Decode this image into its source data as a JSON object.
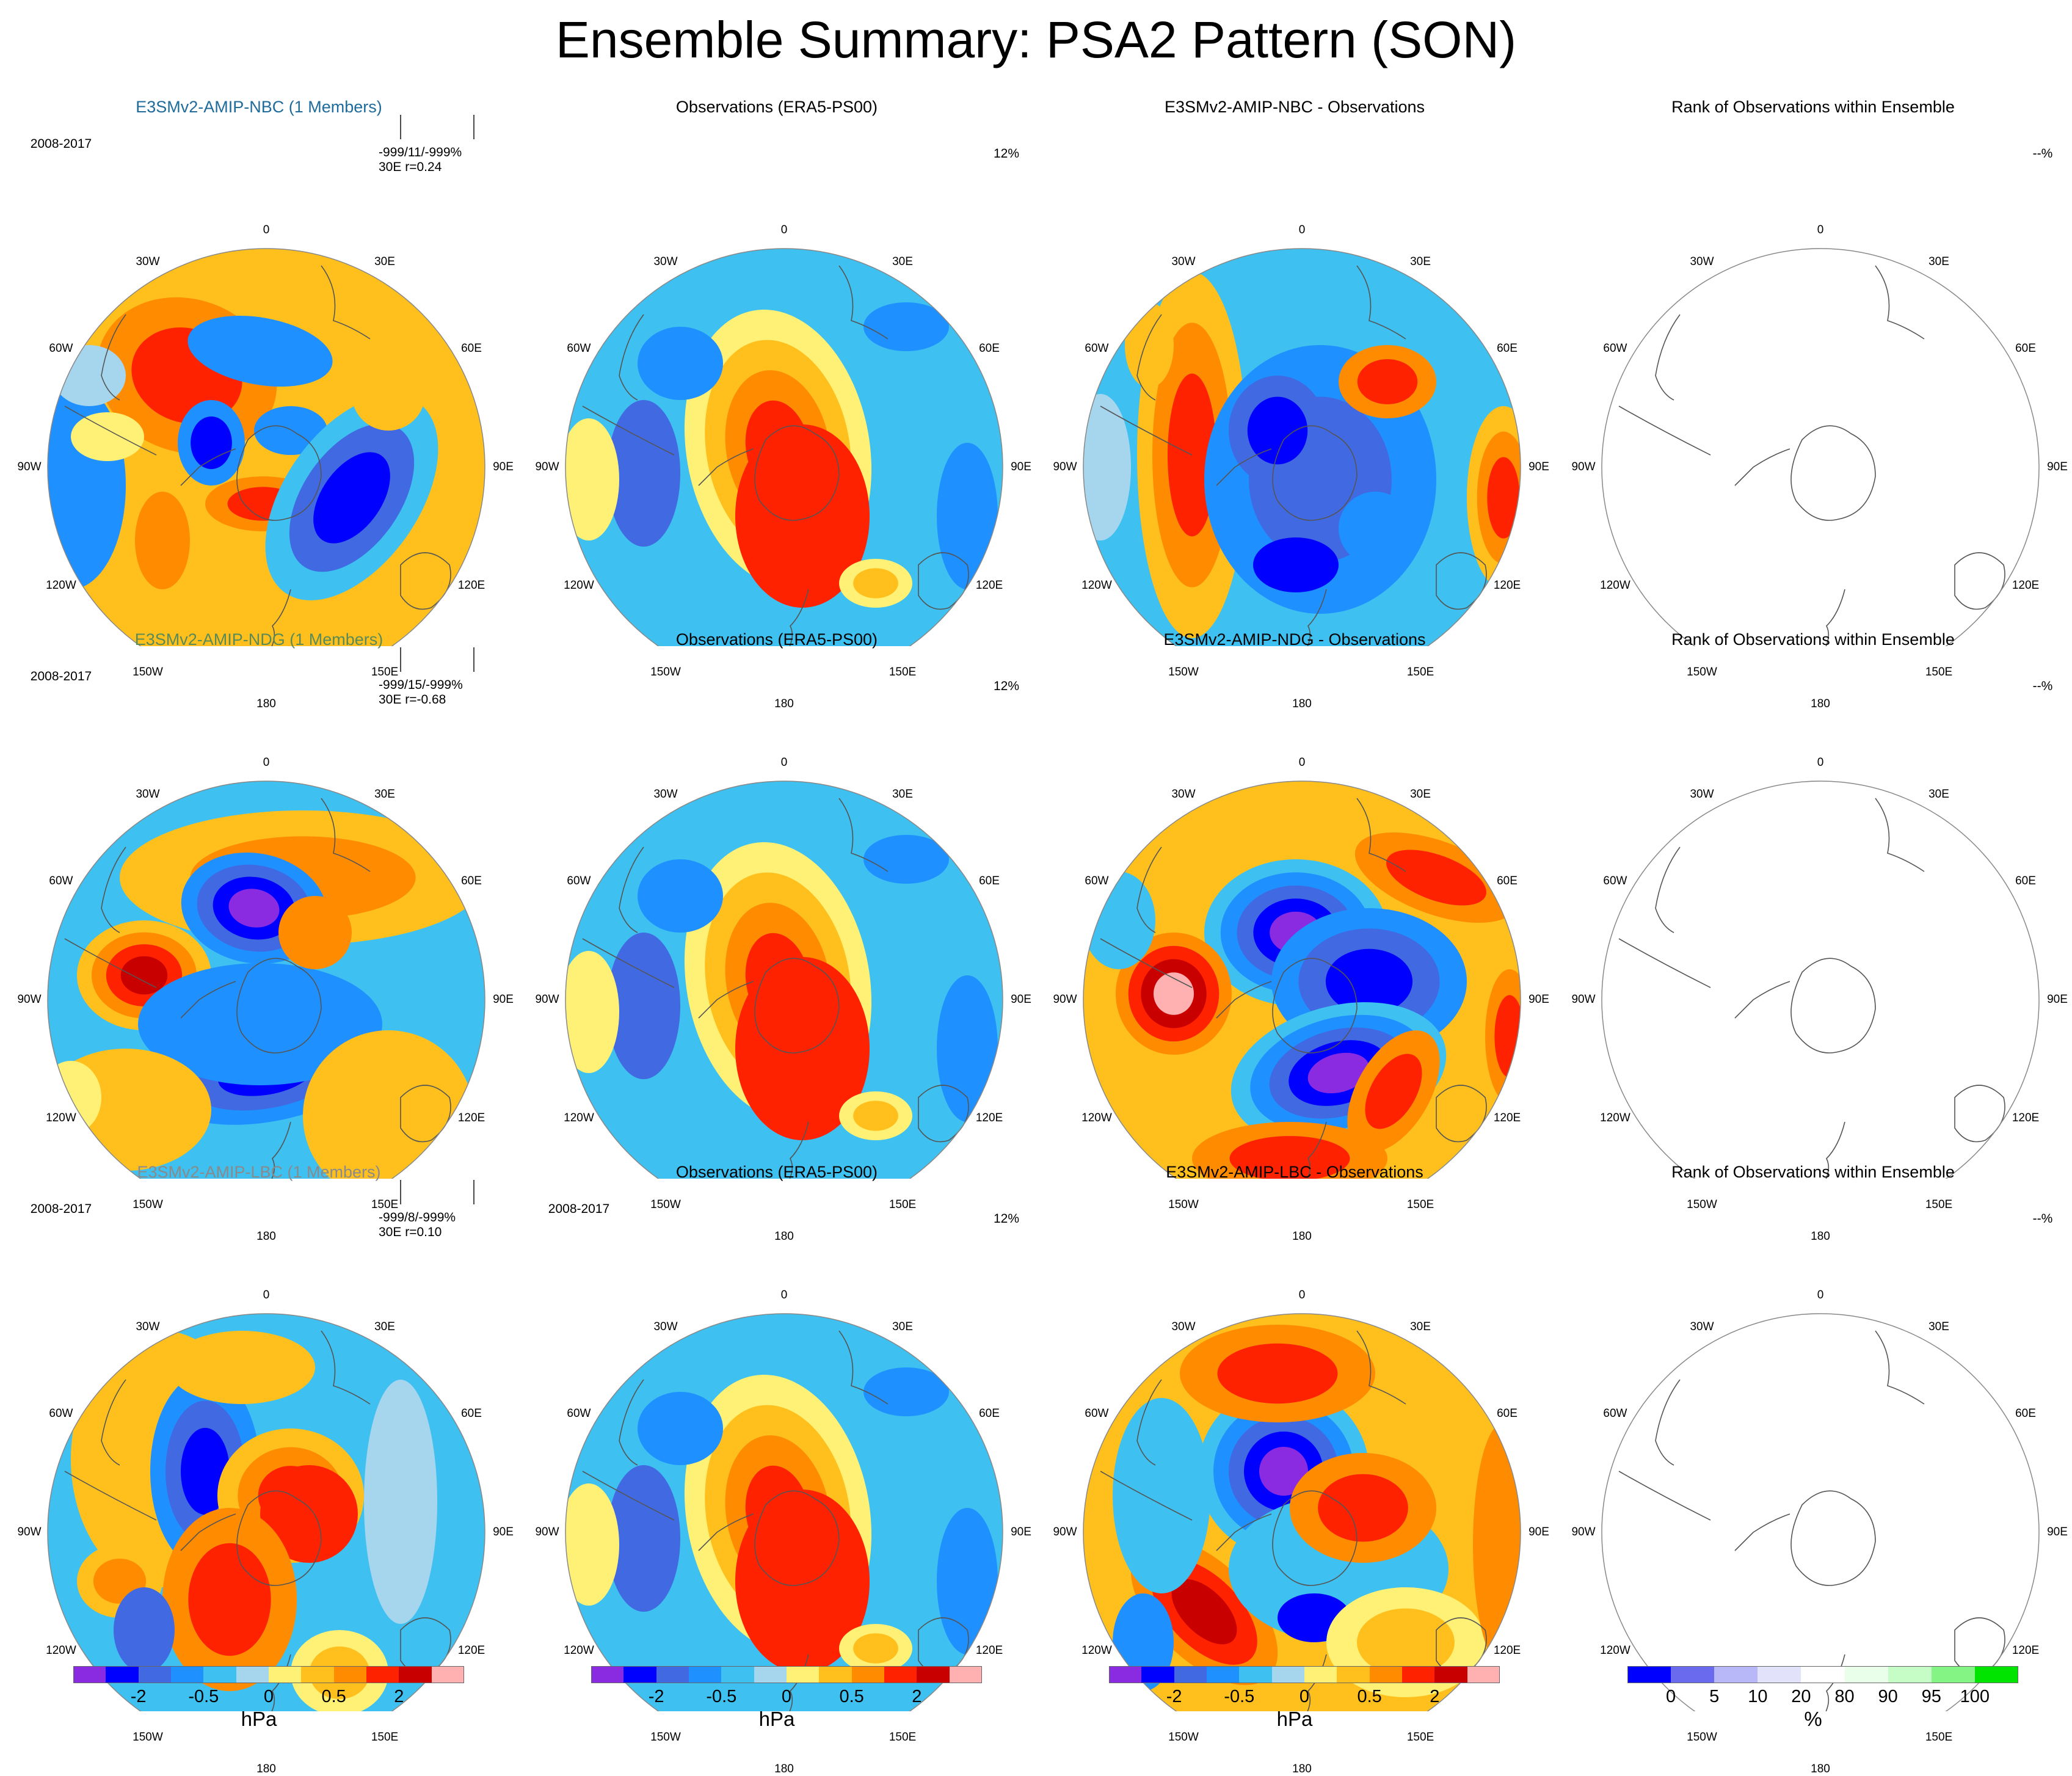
{
  "title": "Ensemble Summary: PSA2 Pattern (SON)",
  "colors": {
    "palette": [
      "#8a2be2",
      "#0000ff",
      "#4169e1",
      "#1e90ff",
      "#3ec0f0",
      "#a6d5ee",
      "#fff176",
      "#ffc01e",
      "#ff8c00",
      "#ff2200",
      "#c80000",
      "#ffb0b0"
    ],
    "rank_palette": [
      "#0000ff",
      "#6a6aef",
      "#b8b8f8",
      "#e2e2fa",
      "#ffffff",
      "#eaffea",
      "#c6fcc6",
      "#84f584",
      "#00e400"
    ],
    "row_titles": [
      "#1e6b9c",
      "#5a8a55",
      "#8a8a8a"
    ]
  },
  "rows": [
    {
      "model": {
        "title": "E3SMv2-AMIP-NBC (1 Members)",
        "period": "2008-2017",
        "stats_line1": "-999/11/-999%",
        "stats_line2": "30E r=0.24"
      },
      "obs": {
        "title": "Observations (ERA5-PS00)",
        "pct": "12%"
      },
      "diff": {
        "title": "E3SMv2-AMIP-NBC - Observations"
      },
      "rank": {
        "title": "Rank of Observations within Ensemble",
        "pct": "--%"
      }
    },
    {
      "model": {
        "title": "E3SMv2-AMIP-NDG (1 Members)",
        "period": "2008-2017",
        "stats_line1": "-999/15/-999%",
        "stats_line2": "30E r=-0.68"
      },
      "obs": {
        "title": "Observations (ERA5-PS00)",
        "pct": "12%"
      },
      "diff": {
        "title": "E3SMv2-AMIP-NDG - Observations"
      },
      "rank": {
        "title": "Rank of Observations within Ensemble",
        "pct": "--%"
      }
    },
    {
      "model": {
        "title": "E3SMv2-AMIP-LBC (1 Members)",
        "period": "2008-2017",
        "stats_line1": "-999/8/-999%",
        "stats_line2": "30E  r=0.10"
      },
      "obs": {
        "title": "Observations (ERA5-PS00)",
        "pct": "12%",
        "period": "2008-2017"
      },
      "diff": {
        "title": "E3SMv2-AMIP-LBC - Observations"
      },
      "rank": {
        "title": "Rank of Observations within Ensemble",
        "pct": "--%"
      }
    }
  ],
  "lon_labels": [
    "0",
    "30E",
    "60E",
    "90E",
    "120E",
    "150E",
    "180",
    "150W",
    "120W",
    "90W",
    "60W",
    "30W"
  ],
  "colorbar": {
    "labels": [
      "-2",
      "-0.5",
      "0",
      "0.5",
      "2"
    ],
    "unit": "hPa"
  },
  "rank_colorbar": {
    "labels": [
      "0",
      "5",
      "10",
      "20",
      "80",
      "90",
      "95",
      "100"
    ],
    "unit": "%"
  }
}
